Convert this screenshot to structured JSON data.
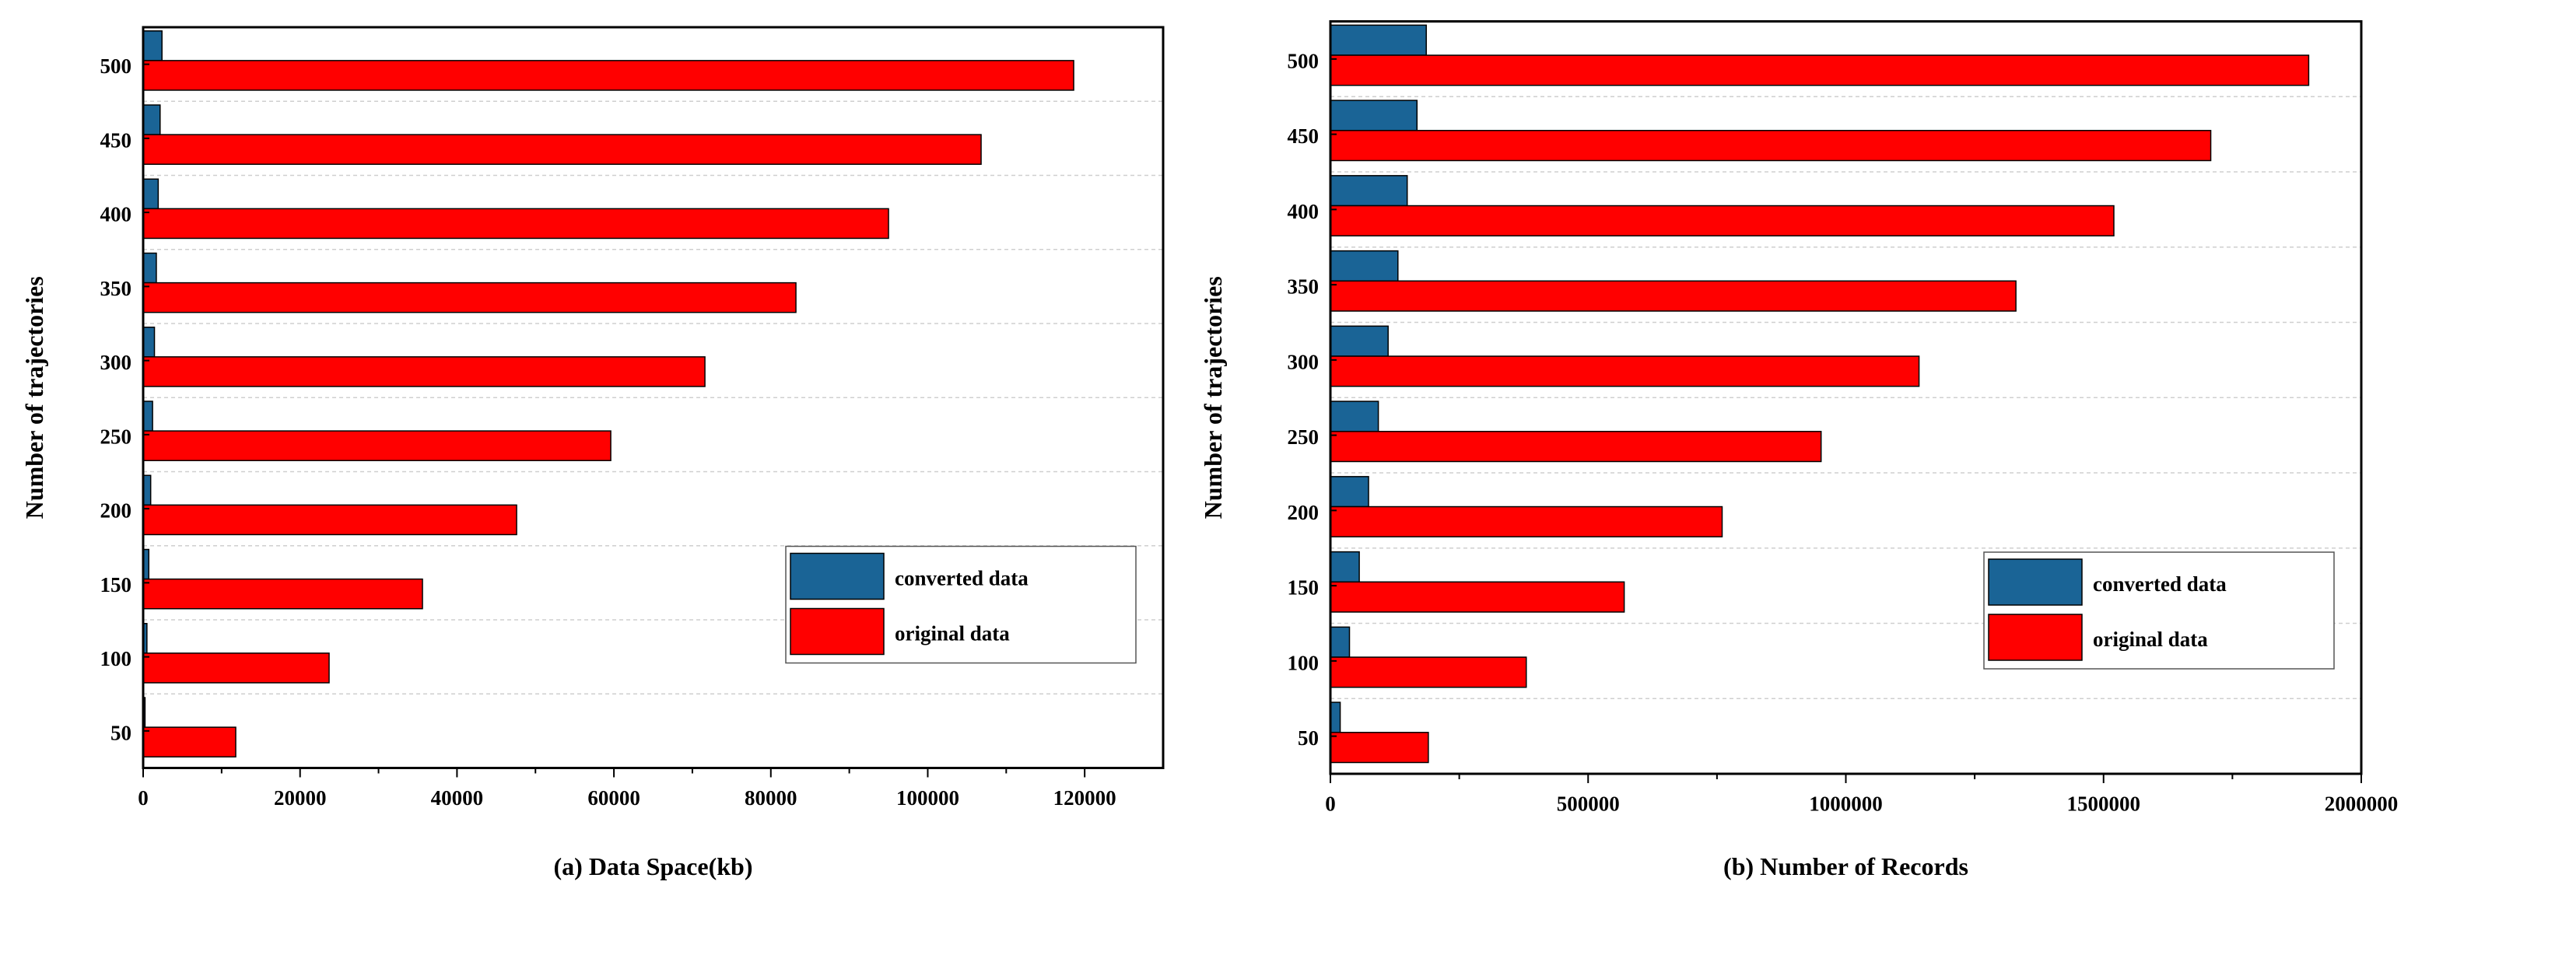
{
  "colors": {
    "converted": "#1a6496",
    "original": "#ff0000",
    "grid": "#cfcfcf",
    "axis": "#000000"
  },
  "chart_data": [
    {
      "type": "bar",
      "orientation": "horizontal",
      "title": "(a) Data Space(kb)",
      "xlabel": "(a) Data Space(kb)",
      "ylabel": "Number of trajectories",
      "categories": [
        "50",
        "100",
        "150",
        "200",
        "250",
        "300",
        "350",
        "400",
        "450",
        "500"
      ],
      "series": [
        {
          "name": "converted data",
          "values": [
            240,
            480,
            720,
            960,
            1200,
            1440,
            1680,
            1920,
            2160,
            2400
          ]
        },
        {
          "name": "original data",
          "values": [
            11800,
            23700,
            35600,
            47600,
            59600,
            71600,
            83200,
            95000,
            106800,
            118600
          ]
        }
      ],
      "xlim": [
        0,
        130000
      ],
      "xticks": [
        0,
        20000,
        40000,
        60000,
        80000,
        100000,
        120000
      ],
      "xtick_labels": [
        "0",
        "20000",
        "40000",
        "60000",
        "80000",
        "100000",
        "120000"
      ],
      "legend": [
        "converted data",
        "original data"
      ],
      "legend_position": "bottom-right",
      "grid": true
    },
    {
      "type": "bar",
      "orientation": "horizontal",
      "title": "(b)  Number of Records",
      "xlabel": "(b)  Number of Records",
      "ylabel": "Number of trajectories",
      "categories": [
        "50",
        "100",
        "150",
        "200",
        "250",
        "300",
        "350",
        "400",
        "450",
        "500"
      ],
      "series": [
        {
          "name": "converted data",
          "values": [
            19000,
            37000,
            56000,
            74000,
            93000,
            112000,
            131000,
            149000,
            168000,
            186000
          ]
        },
        {
          "name": "original data",
          "values": [
            190000,
            380000,
            570000,
            760000,
            952000,
            1142000,
            1330000,
            1520000,
            1708000,
            1898000
          ]
        }
      ],
      "xlim": [
        0,
        2000000
      ],
      "xticks": [
        0,
        500000,
        1000000,
        1500000,
        2000000
      ],
      "xtick_labels": [
        "0",
        "500000",
        "1000000",
        "1500000",
        "2000000"
      ],
      "legend": [
        "converted data",
        "original data"
      ],
      "legend_position": "bottom-right",
      "grid": true
    }
  ]
}
